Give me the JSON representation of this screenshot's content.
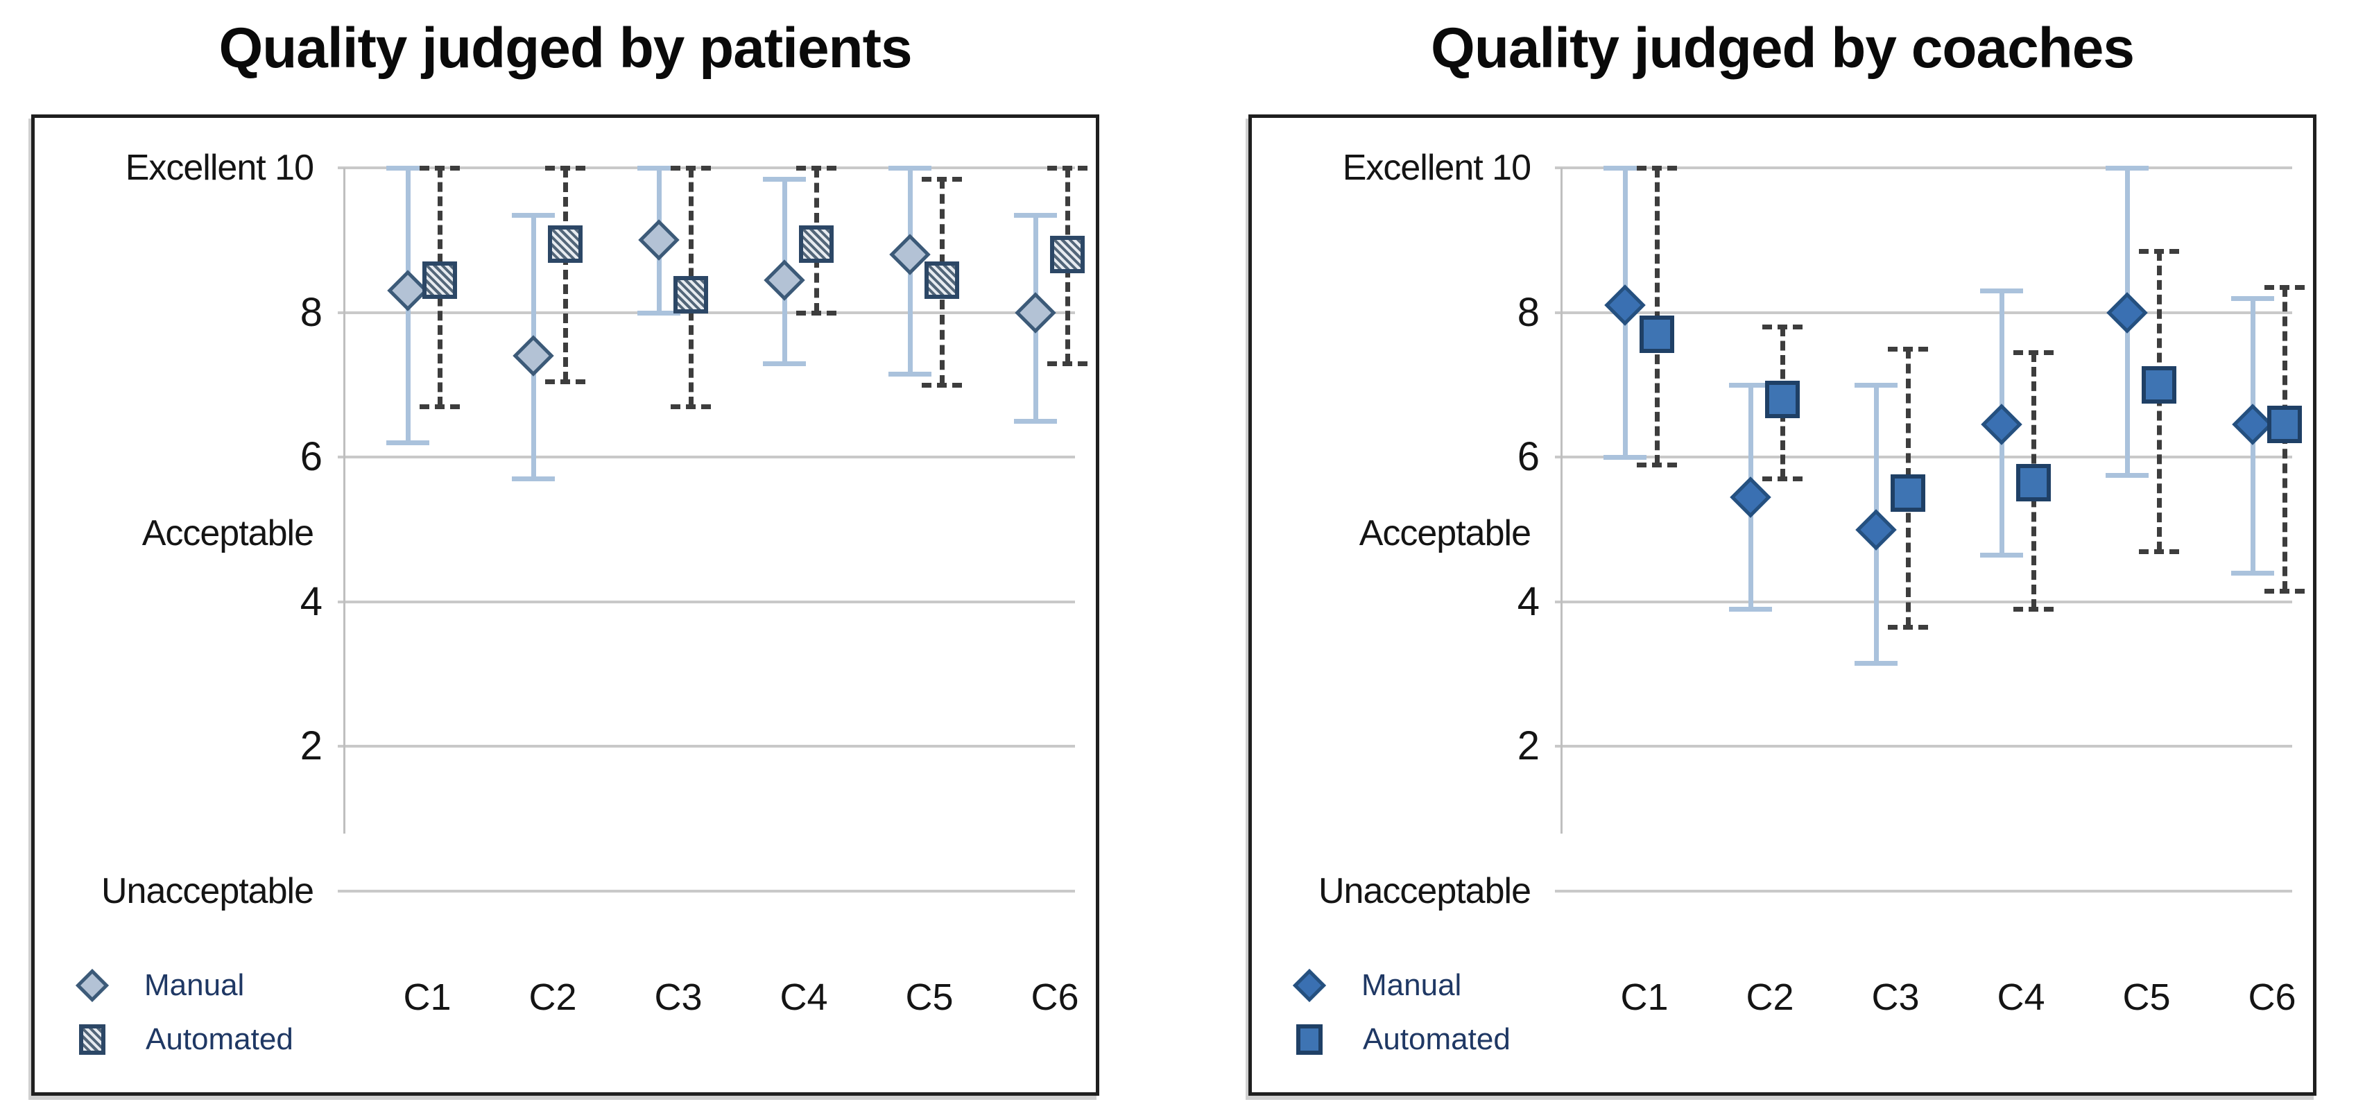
{
  "figure": {
    "kind": "two-panel error-bar scatter comparison",
    "background": "#ffffff"
  },
  "colors": {
    "title_text": "#0a0a0a",
    "panel_border": "#1f1f1f",
    "gridline": "#c9c9c9",
    "axis_line": "#bfbfbf",
    "solid_error_bar": "#aac2dc",
    "dashed_error_bar": "#3d3d3d",
    "patients_marker_fill": "#b3c2d5",
    "patients_marker_border": "#2c4766",
    "coaches_marker_fill": "#3e74b3",
    "coaches_marker_border": "#1f4066",
    "legend_text": "#1f3864"
  },
  "chart_data": [
    {
      "type": "scatter",
      "variant": "patients",
      "title": "Quality judged by patients",
      "categories": [
        "C1",
        "C2",
        "C3",
        "C4",
        "C5",
        "C6"
      ],
      "ylim": [
        0,
        10
      ],
      "yticks": [
        10,
        8,
        6,
        4,
        2,
        0
      ],
      "grid": true,
      "legend_position": "bottom-left",
      "y_labels": [
        {
          "text": "Excellent 10",
          "value": 10,
          "kind": "word"
        },
        {
          "text": "8",
          "value": 8,
          "kind": "num"
        },
        {
          "text": "6",
          "value": 6,
          "kind": "num"
        },
        {
          "text": "Acceptable",
          "value": 4.95,
          "kind": "word"
        },
        {
          "text": "4",
          "value": 4,
          "kind": "num"
        },
        {
          "text": "2",
          "value": 2,
          "kind": "num"
        },
        {
          "text": "Unacceptable",
          "value": 0,
          "kind": "word"
        }
      ],
      "series": [
        {
          "name": "Manual",
          "marker": "diamond",
          "error_bar_style": "solid-light-blue",
          "values": [
            8.3,
            7.4,
            9.0,
            8.45,
            8.8,
            8.0
          ],
          "error_low": [
            6.2,
            5.7,
            8.0,
            7.3,
            7.15,
            6.5
          ],
          "error_high": [
            10.0,
            9.35,
            10.0,
            9.85,
            10.0,
            9.35
          ]
        },
        {
          "name": "Automated",
          "marker": "square",
          "error_bar_style": "dashed-dark",
          "values": [
            8.45,
            8.95,
            8.25,
            8.95,
            8.45,
            8.8
          ],
          "error_low": [
            6.7,
            7.05,
            6.7,
            8.0,
            7.0,
            7.3
          ],
          "error_high": [
            10.0,
            10.0,
            10.0,
            10.0,
            9.85,
            10.0
          ]
        }
      ]
    },
    {
      "type": "scatter",
      "variant": "coaches",
      "title": "Quality judged by coaches",
      "categories": [
        "C1",
        "C2",
        "C3",
        "C4",
        "C5",
        "C6"
      ],
      "ylim": [
        0,
        10
      ],
      "yticks": [
        10,
        8,
        6,
        4,
        2,
        0
      ],
      "grid": true,
      "legend_position": "bottom-left",
      "y_labels": [
        {
          "text": "Excellent 10",
          "value": 10,
          "kind": "word"
        },
        {
          "text": "8",
          "value": 8,
          "kind": "num"
        },
        {
          "text": "6",
          "value": 6,
          "kind": "num"
        },
        {
          "text": "Acceptable",
          "value": 4.95,
          "kind": "word"
        },
        {
          "text": "4",
          "value": 4,
          "kind": "num"
        },
        {
          "text": "2",
          "value": 2,
          "kind": "num"
        },
        {
          "text": "Unacceptable",
          "value": 0,
          "kind": "word"
        }
      ],
      "series": [
        {
          "name": "Manual",
          "marker": "diamond",
          "error_bar_style": "solid-light-blue",
          "values": [
            8.1,
            5.45,
            5.0,
            6.45,
            8.0,
            6.45
          ],
          "error_low": [
            6.0,
            3.9,
            3.15,
            4.65,
            5.75,
            4.4
          ],
          "error_high": [
            10.0,
            7.0,
            7.0,
            8.3,
            10.0,
            8.2
          ]
        },
        {
          "name": "Automated",
          "marker": "square",
          "error_bar_style": "dashed-dark",
          "values": [
            7.7,
            6.8,
            5.5,
            5.65,
            7.0,
            6.45
          ],
          "error_low": [
            5.9,
            5.7,
            3.65,
            3.9,
            4.7,
            4.15
          ],
          "error_high": [
            10.0,
            7.8,
            7.5,
            7.45,
            8.85,
            8.35
          ]
        }
      ]
    }
  ]
}
